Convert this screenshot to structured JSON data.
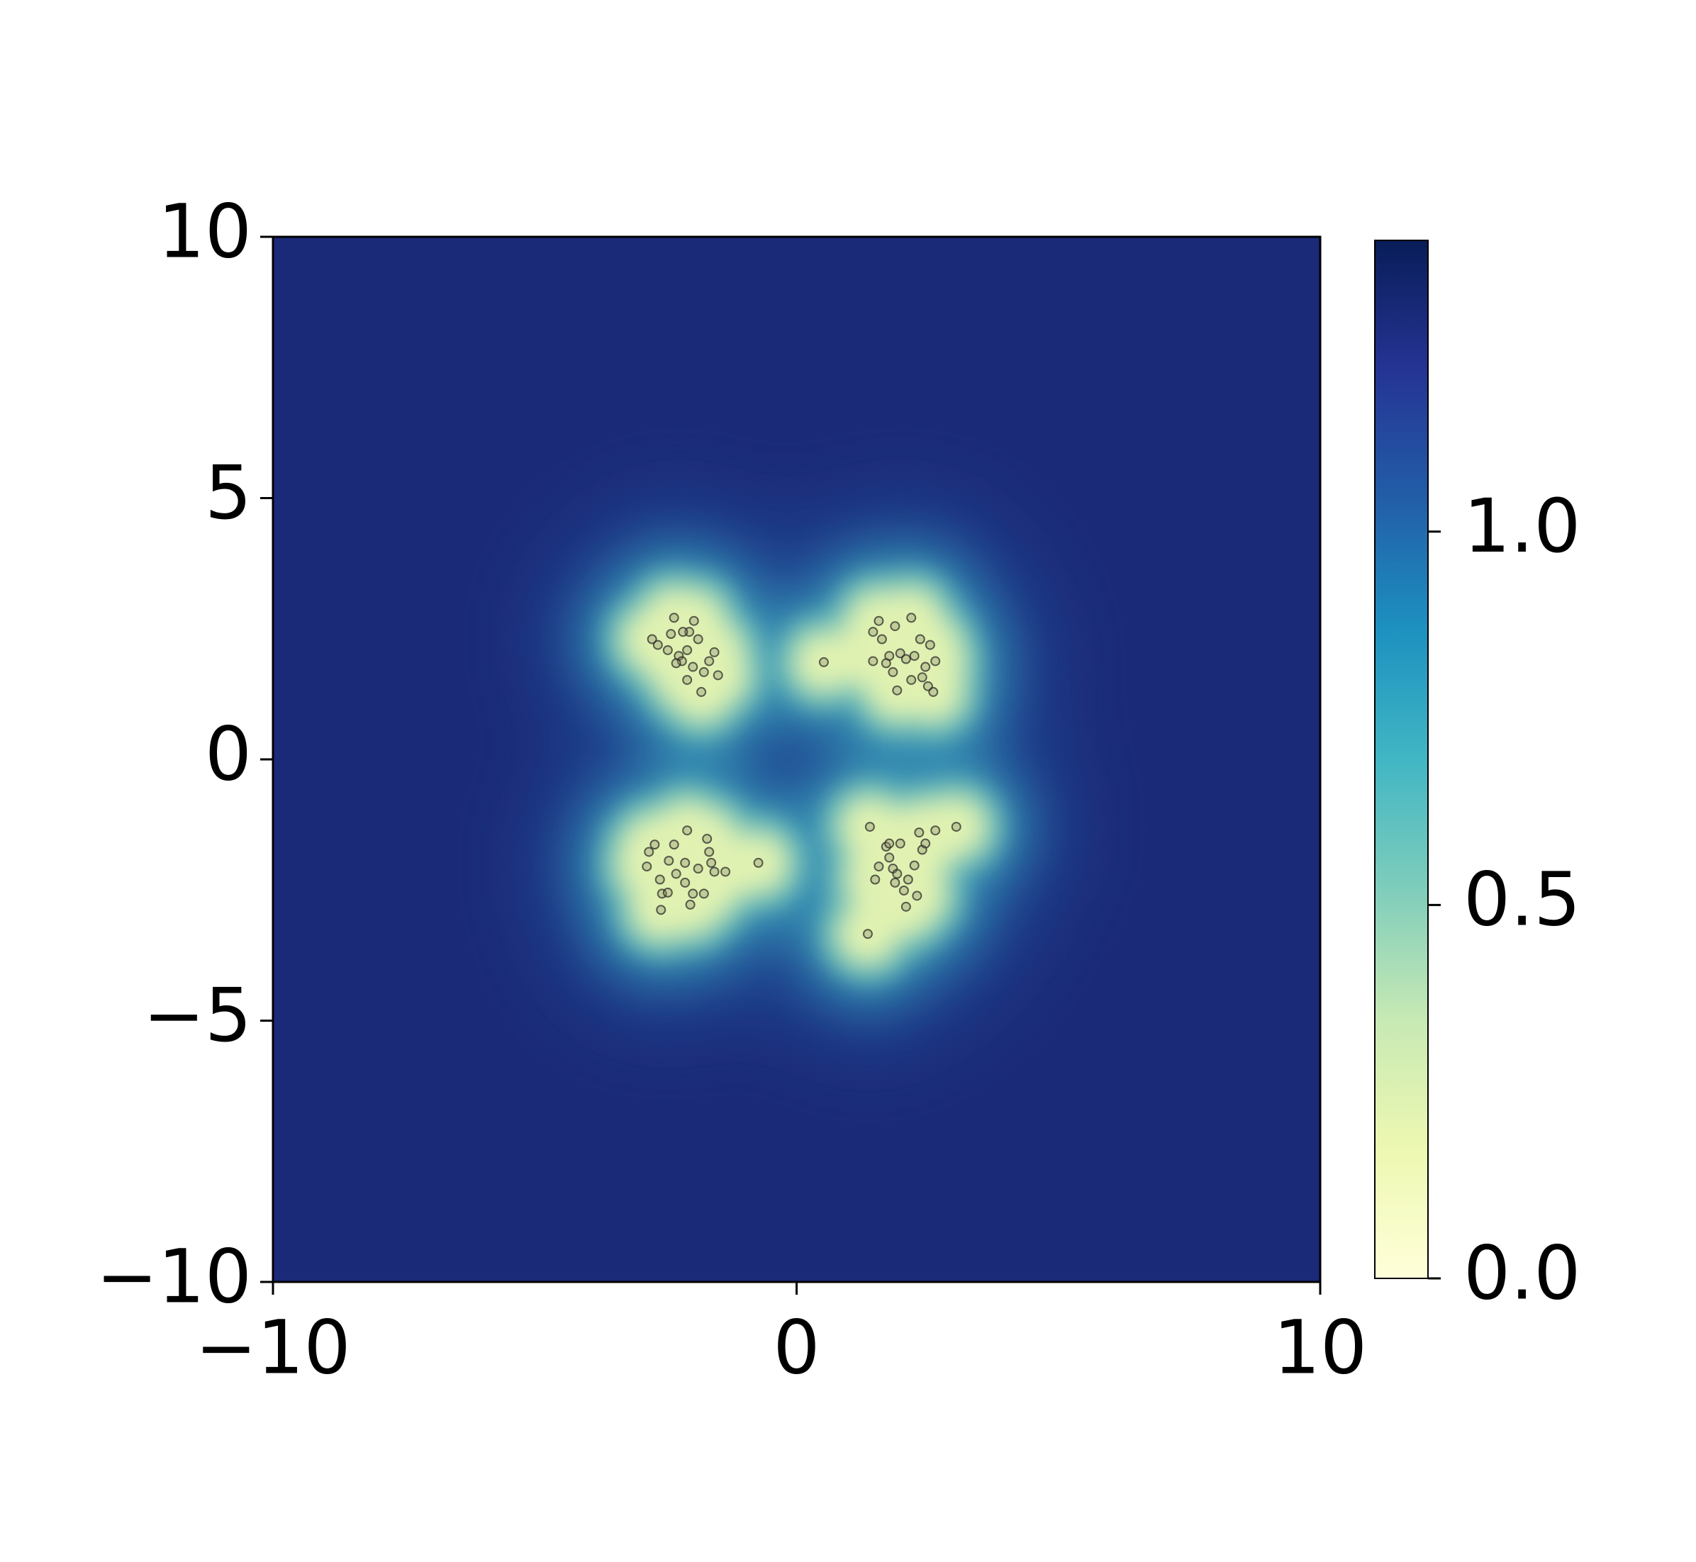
{
  "chart_data": {
    "type": "scatter",
    "x": [
      -2.76,
      -2.65,
      -2.34,
      -2.4,
      -2.25,
      -2.19,
      -2.09,
      -2.05,
      -1.96,
      -1.88,
      -1.98,
      -2.09,
      -1.77,
      -1.67,
      -1.57,
      -1.82,
      -2.3,
      -2.17,
      -1.5,
      -2.46,
      0.52,
      1.46,
      1.57,
      1.63,
      1.77,
      1.88,
      1.71,
      1.98,
      2.09,
      2.19,
      2.25,
      2.36,
      2.46,
      2.55,
      2.65,
      2.51,
      2.61,
      1.92,
      2.19,
      1.46,
      1.84,
      2.4,
      -2.82,
      -2.71,
      -2.86,
      -2.44,
      -2.61,
      -2.57,
      -2.59,
      -2.3,
      -2.13,
      -2.09,
      -2.13,
      -1.98,
      -2.03,
      -1.88,
      -1.77,
      -1.71,
      -1.67,
      -1.63,
      -1.57,
      -1.36,
      -0.73,
      -2.34,
      -2.46,
      1.4,
      1.36,
      1.71,
      1.77,
      1.84,
      1.88,
      1.57,
      1.5,
      1.98,
      2.05,
      2.09,
      2.25,
      2.3,
      2.4,
      2.46,
      2.34,
      2.65,
      3.05,
      1.92,
      1.77,
      2.13
    ],
    "y": [
      2.3,
      2.19,
      2.71,
      2.4,
      1.98,
      1.88,
      2.09,
      2.44,
      2.65,
      2.3,
      1.77,
      1.52,
      1.67,
      1.88,
      2.05,
      1.29,
      1.84,
      2.44,
      1.61,
      2.09,
      1.86,
      2.44,
      2.65,
      2.3,
      1.98,
      2.55,
      1.84,
      2.03,
      1.92,
      2.71,
      1.98,
      2.3,
      1.77,
      2.19,
      1.88,
      1.4,
      1.29,
      1.32,
      1.52,
      1.88,
      1.67,
      1.57,
      -1.77,
      -1.63,
      -2.05,
      -1.94,
      -2.3,
      -2.57,
      -2.88,
      -2.19,
      -1.98,
      -1.36,
      -2.36,
      -2.57,
      -2.78,
      -2.09,
      -2.57,
      -1.52,
      -1.77,
      -1.98,
      -2.15,
      -2.15,
      -1.98,
      -1.63,
      -2.55,
      -1.29,
      -3.34,
      -1.67,
      -1.88,
      -2.09,
      -2.36,
      -2.05,
      -2.3,
      -1.61,
      -2.51,
      -2.82,
      -2.03,
      -2.61,
      -1.73,
      -1.61,
      -1.4,
      -1.36,
      -1.29,
      -2.19,
      -1.61,
      -2.3
    ],
    "color": "#8a8a6a",
    "background_color": "#1b2a78",
    "xlim": [
      -10,
      10
    ],
    "ylim": [
      -10,
      10
    ],
    "xticks": [
      {
        "value": -10,
        "label": "−10"
      },
      0,
      10
    ],
    "yticks": [
      {
        "value": -10,
        "label": "−10"
      },
      {
        "value": -5,
        "label": "−5"
      },
      0,
      5,
      10
    ],
    "colorbar": {
      "lim": [
        0,
        1.39
      ],
      "ticks": [
        {
          "value": 0,
          "label": "0.0"
        },
        0.5,
        {
          "value": 1,
          "label": "1.0"
        }
      ],
      "colors": [
        "#ffffd9",
        "#edf8b1",
        "#c7e9b4",
        "#7fcdbb",
        "#41b6c4",
        "#1d91c0",
        "#225ea8",
        "#253494",
        "#081d58"
      ]
    }
  }
}
